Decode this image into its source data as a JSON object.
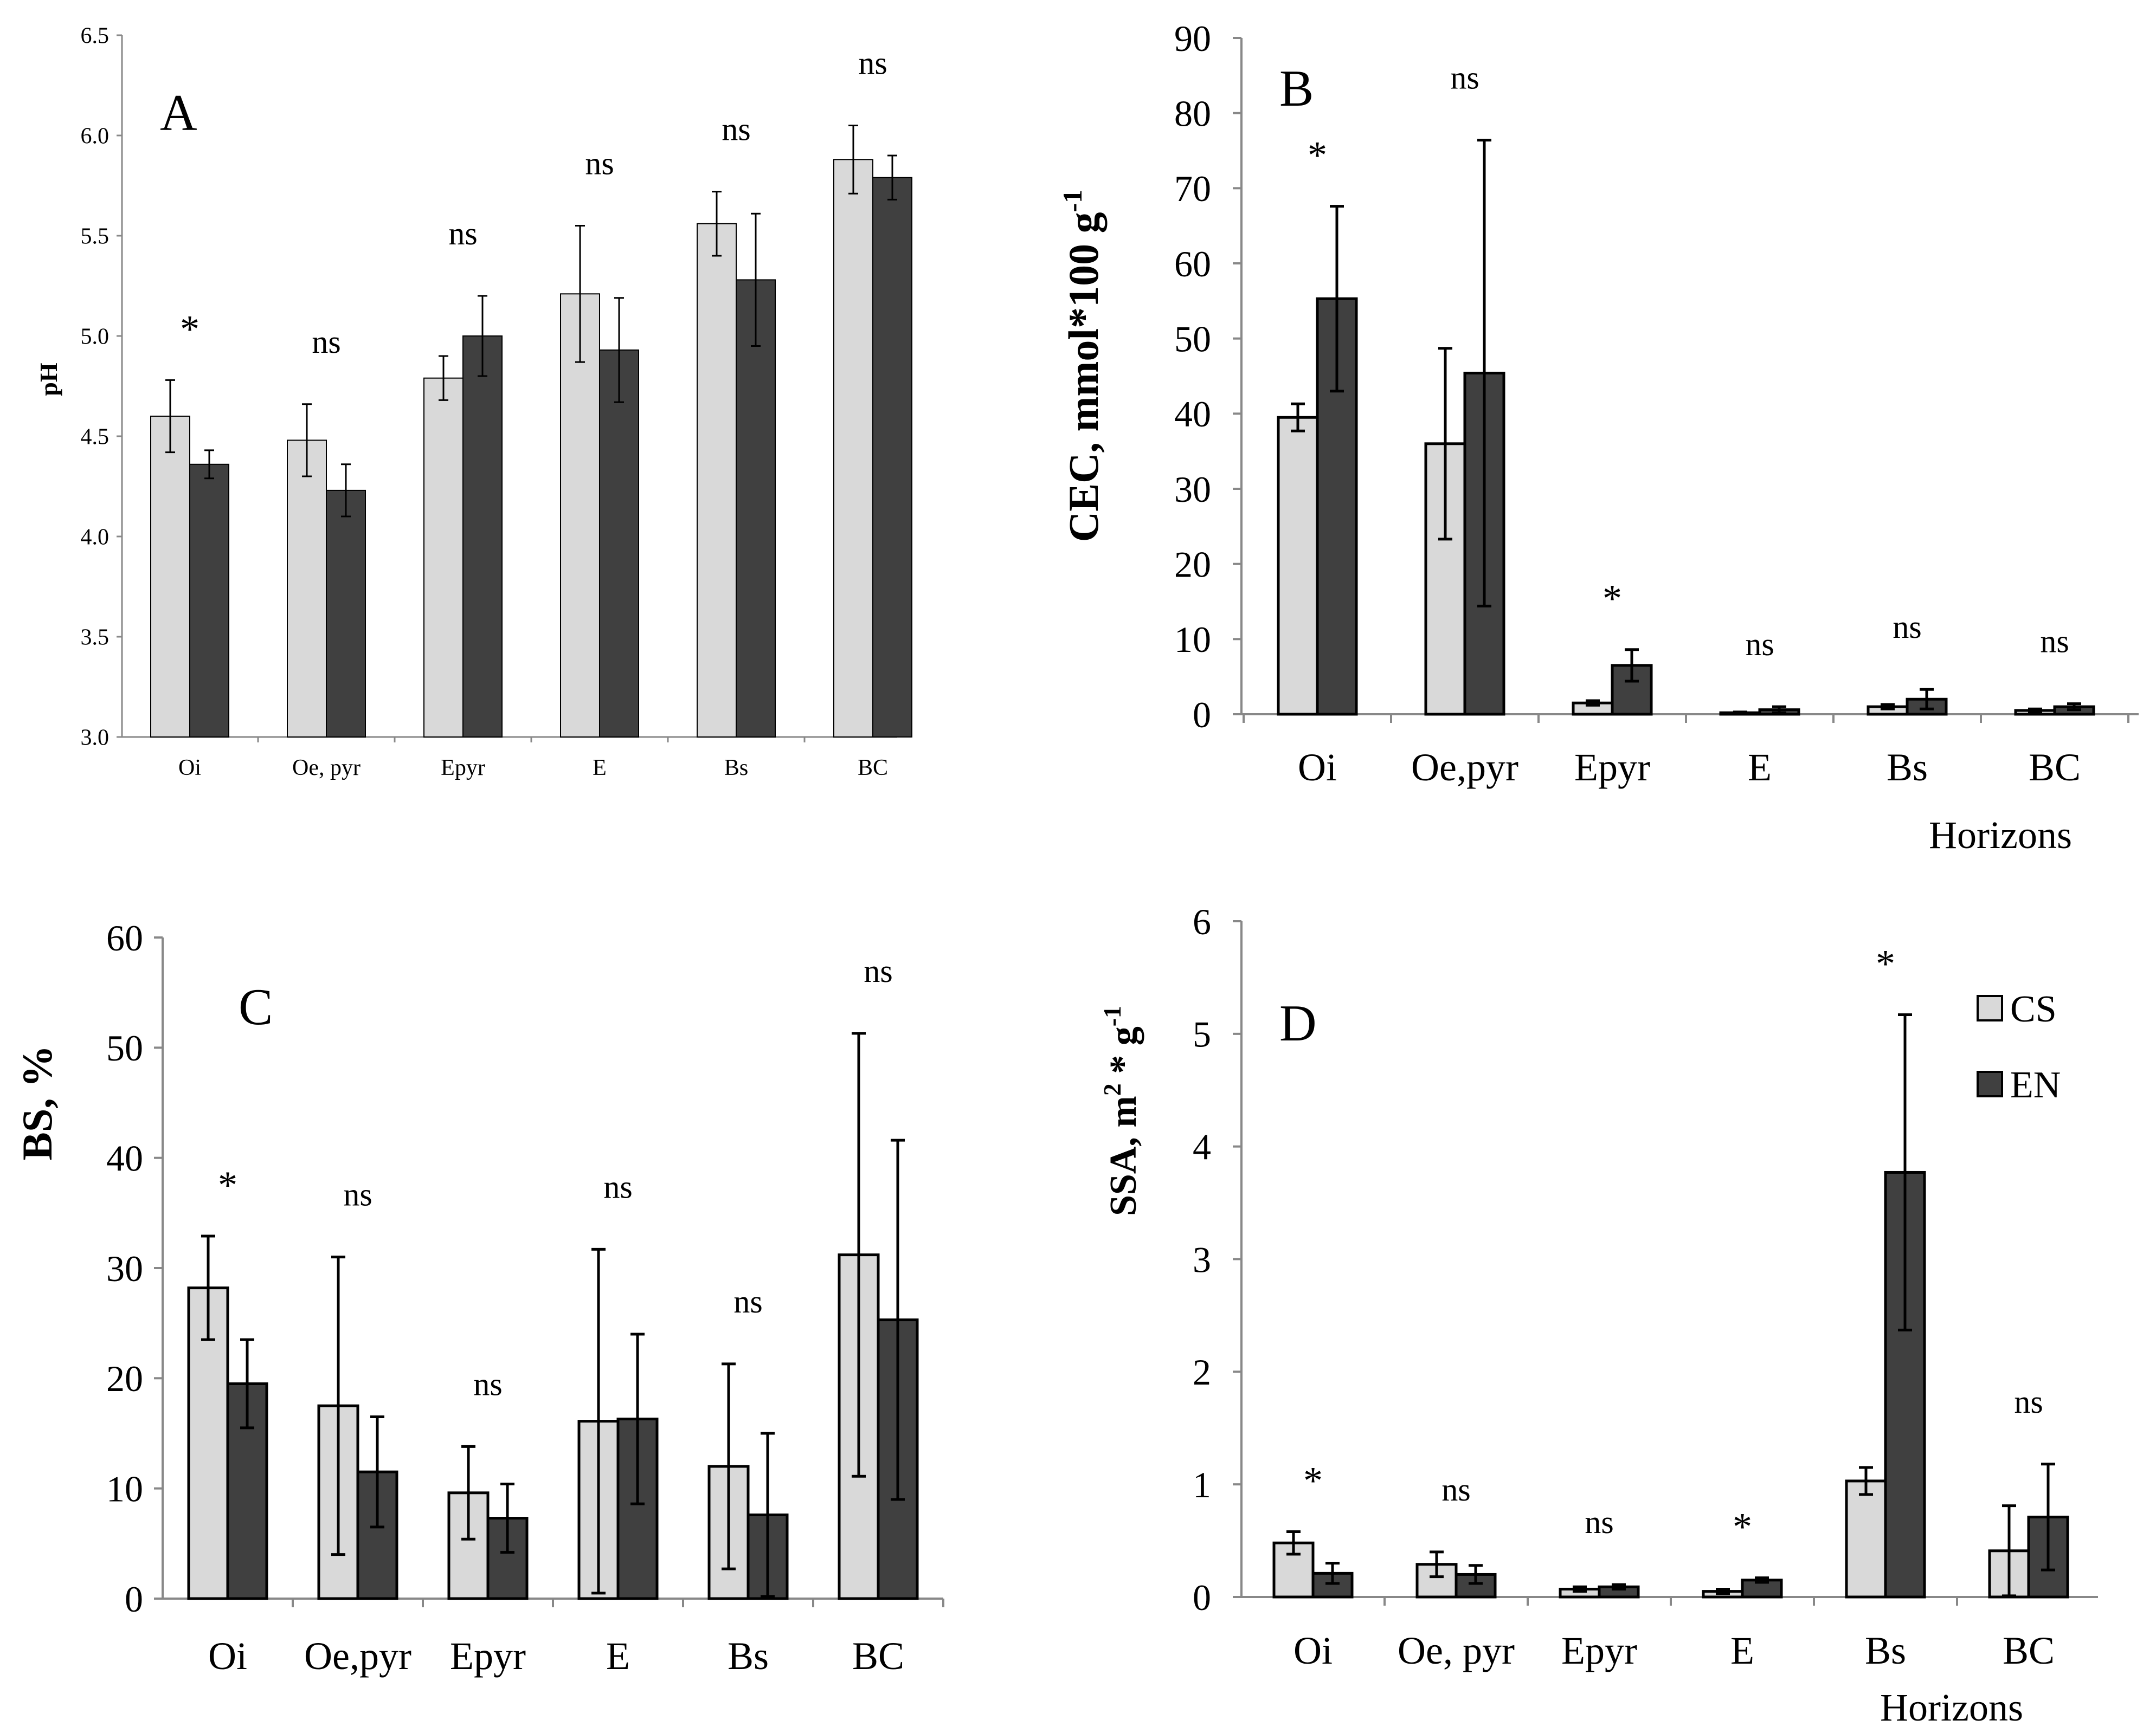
{
  "colors": {
    "CS": "#d9d9d9",
    "EN": "#404040",
    "axis": "#888888",
    "bar_stroke": "#000000"
  },
  "legend": {
    "series": [
      "CS",
      "EN"
    ]
  },
  "chart_data": [
    {
      "id": "A",
      "type": "bar",
      "panel_label": "A",
      "ylabel": "pH",
      "xlabel": "",
      "ylim": [
        3.0,
        6.5
      ],
      "ytick_values": [
        3.0,
        3.5,
        4.0,
        4.5,
        5.0,
        5.5,
        6.0,
        6.5
      ],
      "ytick_labels": [
        "3.0",
        "3.5",
        "4.0",
        "4.5",
        "5.0",
        "5.5",
        "6.0",
        "6.5"
      ],
      "categories": [
        "Oi",
        "Oe, pyr",
        "Epyr",
        "E",
        "Bs",
        "BC"
      ],
      "series": [
        {
          "name": "CS",
          "values": [
            4.6,
            4.48,
            4.79,
            5.21,
            5.56,
            5.88
          ],
          "errors": [
            0.18,
            0.18,
            0.11,
            0.34,
            0.16,
            0.17
          ]
        },
        {
          "name": "EN",
          "values": [
            4.36,
            4.23,
            5.0,
            4.93,
            5.28,
            5.79
          ],
          "errors": [
            0.07,
            0.13,
            0.2,
            0.26,
            0.33,
            0.11
          ]
        }
      ],
      "annotations": [
        "*",
        "ns",
        "ns",
        "ns",
        "ns",
        "ns"
      ]
    },
    {
      "id": "B",
      "type": "bar",
      "panel_label": "B",
      "ylabel": "CEC, mmol*100 g",
      "ylabel_sup": "-1",
      "xlabel": "Horizons",
      "ylim": [
        0,
        90
      ],
      "ytick_values": [
        0,
        10,
        20,
        30,
        40,
        50,
        60,
        70,
        80,
        90
      ],
      "ytick_labels": [
        "0",
        "10",
        "20",
        "30",
        "40",
        "50",
        "60",
        "70",
        "80",
        "90"
      ],
      "categories": [
        "Oi",
        "Oe,pyr",
        "Epyr",
        "E",
        "Bs",
        "BC"
      ],
      "series": [
        {
          "name": "CS",
          "values": [
            39.5,
            36.0,
            1.5,
            0.2,
            1.0,
            0.5
          ],
          "errors": [
            1.8,
            12.7,
            0.3,
            0.1,
            0.3,
            0.2
          ]
        },
        {
          "name": "EN",
          "values": [
            55.3,
            45.4,
            6.5,
            0.6,
            2.0,
            1.0
          ],
          "errors": [
            12.3,
            31.0,
            2.1,
            0.4,
            1.3,
            0.4
          ]
        }
      ],
      "annotations": [
        "*",
        "ns",
        "*",
        "ns",
        "ns",
        "ns"
      ]
    },
    {
      "id": "C",
      "type": "bar",
      "panel_label": "C",
      "ylabel": "BS, %",
      "xlabel": "",
      "ylim": [
        0,
        60
      ],
      "ytick_values": [
        0,
        10,
        20,
        30,
        40,
        50,
        60
      ],
      "ytick_labels": [
        "0",
        "10",
        "20",
        "30",
        "40",
        "50",
        "60"
      ],
      "categories": [
        "Oi",
        "Oe,pyr",
        "Epyr",
        "E",
        "Bs",
        "BC"
      ],
      "series": [
        {
          "name": "CS",
          "values": [
            28.2,
            17.5,
            9.6,
            16.1,
            12.0,
            31.2
          ],
          "errors": [
            4.7,
            13.5,
            4.2,
            15.6,
            9.3,
            20.1
          ]
        },
        {
          "name": "EN",
          "values": [
            19.5,
            11.5,
            7.3,
            16.3,
            7.6,
            25.3
          ],
          "errors": [
            4.0,
            5.0,
            3.1,
            7.7,
            7.4,
            16.3
          ]
        }
      ],
      "annotations": [
        "*",
        "ns",
        "ns",
        "ns",
        "ns",
        "ns"
      ]
    },
    {
      "id": "D",
      "type": "bar",
      "panel_label": "D",
      "ylabel": "SSA, m",
      "ylabel_sup1": "2",
      "ylabel_mid": " * g",
      "ylabel_sup2": "-1",
      "xlabel": "Horizons",
      "ylim": [
        0,
        6
      ],
      "ytick_values": [
        0,
        1,
        2,
        3,
        4,
        5,
        6
      ],
      "ytick_labels": [
        "0",
        "1",
        "2",
        "3",
        "4",
        "5",
        "6"
      ],
      "categories": [
        "Oi",
        "Oe, pyr",
        "Epyr",
        "E",
        "Bs",
        "BC"
      ],
      "series": [
        {
          "name": "CS",
          "values": [
            0.48,
            0.29,
            0.07,
            0.05,
            1.03,
            0.41
          ],
          "errors": [
            0.1,
            0.11,
            0.02,
            0.02,
            0.12,
            0.4
          ]
        },
        {
          "name": "EN",
          "values": [
            0.21,
            0.2,
            0.09,
            0.15,
            3.77,
            0.71
          ],
          "errors": [
            0.09,
            0.08,
            0.02,
            0.02,
            1.4,
            0.47
          ]
        }
      ],
      "annotations": [
        "*",
        "ns",
        "ns",
        "*",
        "*",
        "ns"
      ]
    }
  ]
}
